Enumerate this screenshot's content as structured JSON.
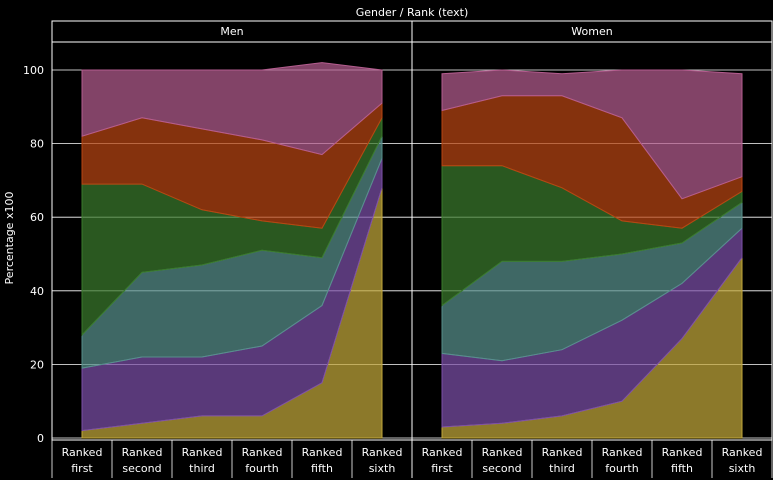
{
  "chart_data": {
    "type": "area",
    "stacked": true,
    "title": "Gender / Rank (text)",
    "ylabel": "Percentage x100",
    "ylim": [
      0,
      100
    ],
    "yticks": [
      0,
      20,
      40,
      60,
      80,
      100
    ],
    "grid": true,
    "categories": [
      "Ranked first",
      "Ranked second",
      "Ranked third",
      "Ranked fourth",
      "Ranked fifth",
      "Ranked sixth"
    ],
    "category_lines": [
      [
        "Ranked",
        "first"
      ],
      [
        "Ranked",
        "second"
      ],
      [
        "Ranked",
        "third"
      ],
      [
        "Ranked",
        "fourth"
      ],
      [
        "Ranked",
        "fifth"
      ],
      [
        "Ranked",
        "sixth"
      ]
    ],
    "series_colors": [
      "#c2a83a",
      "#7c4fa8",
      "#57908c",
      "#3a7a2c",
      "#b84512",
      "#b45d8f"
    ],
    "panels": [
      {
        "name": "Men",
        "series": [
          {
            "values": [
              2,
              4,
              6,
              6,
              15,
              68
            ]
          },
          {
            "values": [
              17,
              18,
              16,
              19,
              21,
              8
            ]
          },
          {
            "values": [
              9,
              23,
              25,
              26,
              13,
              6
            ]
          },
          {
            "values": [
              41,
              24,
              15,
              8,
              8,
              5
            ]
          },
          {
            "values": [
              13,
              18,
              22,
              22,
              20,
              4
            ]
          },
          {
            "values": [
              18,
              13,
              16,
              19,
              25,
              9
            ]
          }
        ]
      },
      {
        "name": "Women",
        "series": [
          {
            "values": [
              3,
              4,
              6,
              10,
              27,
              49
            ]
          },
          {
            "values": [
              20,
              17,
              18,
              22,
              15,
              8
            ]
          },
          {
            "values": [
              13,
              27,
              24,
              18,
              11,
              7
            ]
          },
          {
            "values": [
              38,
              26,
              20,
              9,
              4,
              3
            ]
          },
          {
            "values": [
              15,
              19,
              25,
              28,
              8,
              4
            ]
          },
          {
            "values": [
              10,
              7,
              6,
              13,
              35,
              28
            ]
          }
        ]
      }
    ]
  }
}
